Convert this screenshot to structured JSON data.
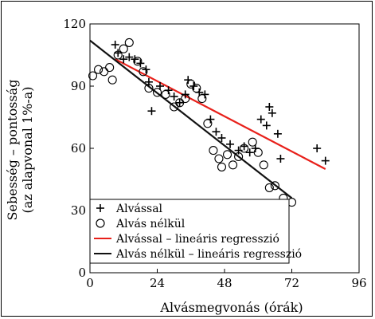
{
  "chart_data": {
    "type": "scatter",
    "xlabel": "Alvásmegvonás (órák)",
    "ylabel_line1": "Sebesség – pontosság",
    "ylabel_line2": "(az alapvonal 1%-a)",
    "xlim": [
      0,
      96
    ],
    "ylim": [
      0,
      120
    ],
    "xticks": [
      "0",
      "24",
      "48",
      "72",
      "96"
    ],
    "yticks": [
      "0",
      "30",
      "60",
      "90",
      "120"
    ],
    "legend_position": "bottom-left",
    "series": [
      {
        "name": "Alvással",
        "marker": "plus",
        "color": "#000000",
        "points": [
          [
            9,
            110
          ],
          [
            10,
            106
          ],
          [
            12,
            103
          ],
          [
            14,
            104
          ],
          [
            16,
            103
          ],
          [
            18,
            101
          ],
          [
            20,
            98
          ],
          [
            21,
            92
          ],
          [
            22,
            78
          ],
          [
            25,
            90
          ],
          [
            28,
            88
          ],
          [
            30,
            85
          ],
          [
            32,
            82
          ],
          [
            34,
            86
          ],
          [
            35,
            93
          ],
          [
            37,
            90
          ],
          [
            39,
            87
          ],
          [
            41,
            86
          ],
          [
            43,
            74
          ],
          [
            45,
            68
          ],
          [
            47,
            65
          ],
          [
            50,
            62
          ],
          [
            53,
            59
          ],
          [
            55,
            61
          ],
          [
            57,
            58
          ],
          [
            59,
            60
          ],
          [
            61,
            74
          ],
          [
            63,
            71
          ],
          [
            64,
            80
          ],
          [
            65,
            77
          ],
          [
            67,
            67
          ],
          [
            68,
            55
          ],
          [
            81,
            60
          ],
          [
            84,
            54
          ]
        ]
      },
      {
        "name": "Alvás nélkül",
        "marker": "circle",
        "color": "#000000",
        "points": [
          [
            1,
            95
          ],
          [
            3,
            98
          ],
          [
            5,
            97
          ],
          [
            7,
            99
          ],
          [
            8,
            93
          ],
          [
            10,
            105
          ],
          [
            12,
            108
          ],
          [
            14,
            111
          ],
          [
            17,
            102
          ],
          [
            19,
            97
          ],
          [
            21,
            89
          ],
          [
            24,
            87
          ],
          [
            27,
            86
          ],
          [
            30,
            80
          ],
          [
            32,
            82
          ],
          [
            34,
            84
          ],
          [
            36,
            91
          ],
          [
            38,
            89
          ],
          [
            40,
            84
          ],
          [
            42,
            72
          ],
          [
            44,
            59
          ],
          [
            46,
            55
          ],
          [
            47,
            51
          ],
          [
            49,
            57
          ],
          [
            51,
            52
          ],
          [
            53,
            56
          ],
          [
            55,
            60
          ],
          [
            58,
            63
          ],
          [
            60,
            58
          ],
          [
            62,
            52
          ],
          [
            64,
            41
          ],
          [
            66,
            42
          ],
          [
            69,
            36
          ],
          [
            72,
            34
          ]
        ]
      }
    ],
    "regression_lines": [
      {
        "name": "Alvással – lineáris regresszió",
        "color": "#e8201a",
        "x": [
          9,
          84
        ],
        "y": [
          103,
          50
        ]
      },
      {
        "name": "Alvás nélkül – lineáris regresszió",
        "color": "#111111",
        "x": [
          0,
          72
        ],
        "y": [
          112,
          36
        ]
      }
    ]
  }
}
